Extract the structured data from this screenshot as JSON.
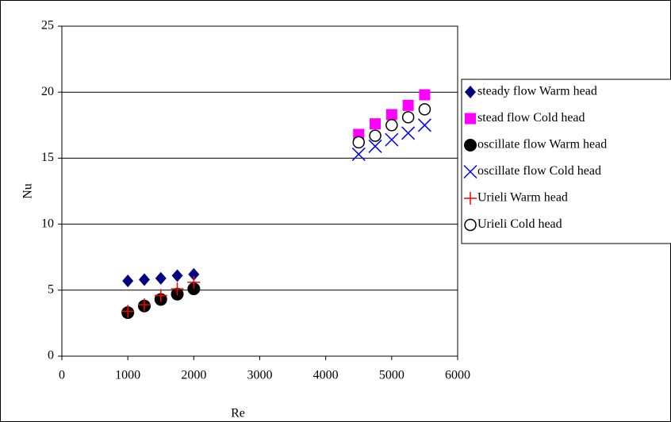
{
  "chart_data": {
    "type": "scatter",
    "x_label": "Re",
    "y_label": "Nu",
    "xlim": [
      0,
      6000
    ],
    "xticks": [
      0,
      1000,
      2000,
      3000,
      4000,
      5000,
      6000
    ],
    "ylim": [
      0,
      25
    ],
    "yticks": [
      0,
      5,
      10,
      15,
      20,
      25
    ],
    "grid": true,
    "legend": "right",
    "series": [
      {
        "name": "steady flow Warm head",
        "color": "#000080",
        "marker": "diamond",
        "x": [
          1000,
          1250,
          1500,
          1750,
          2000
        ],
        "values": [
          5.7,
          5.8,
          5.9,
          6.1,
          6.2
        ]
      },
      {
        "name": "stead flow Cold head",
        "color": "#ff00ff",
        "marker": "square",
        "x": [
          4500,
          4750,
          5000,
          5250,
          5500
        ],
        "values": [
          16.8,
          17.6,
          18.3,
          19.0,
          19.8
        ]
      },
      {
        "name": "oscillate flow Warm head",
        "color": "#000000",
        "marker": "circle",
        "x": [
          1000,
          1250,
          1500,
          1750,
          2000
        ],
        "values": [
          3.3,
          3.8,
          4.3,
          4.7,
          5.1
        ]
      },
      {
        "name": "oscillate flow Cold head",
        "color": "#0000ff",
        "marker": "x",
        "x": [
          4500,
          4750,
          5000,
          5250,
          5500
        ],
        "values": [
          15.3,
          15.9,
          16.4,
          16.9,
          17.5
        ]
      },
      {
        "name": "Urieli Warm head",
        "color": "#ff0000",
        "marker": "plus",
        "x": [
          1000,
          1250,
          1500,
          1750,
          2000
        ],
        "values": [
          3.4,
          3.9,
          4.6,
          5.1,
          5.6
        ]
      },
      {
        "name": "Urieli Cold head",
        "color": "#000000",
        "marker": "open-circle",
        "x": [
          4500,
          4750,
          5000,
          5250,
          5500
        ],
        "values": [
          16.2,
          16.7,
          17.5,
          18.1,
          18.7
        ]
      }
    ]
  }
}
